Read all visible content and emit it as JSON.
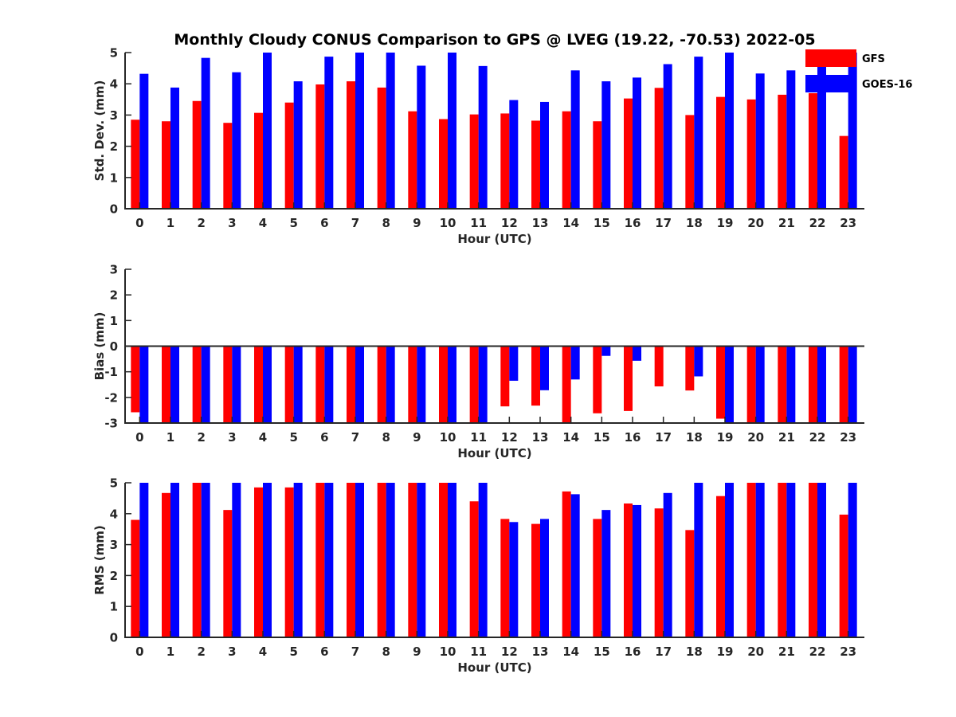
{
  "chart_data": {
    "title": "Monthly Cloudy CONUS Comparison to GPS @ LVEG (19.22, -70.53) 2022-05",
    "legend": {
      "placement": "top-right",
      "entries": [
        {
          "name": "GFS",
          "color": "#ff0000"
        },
        {
          "name": "GOES-16",
          "color": "#0000ff"
        }
      ]
    },
    "panels": [
      {
        "type": "bar",
        "xlabel": "Hour (UTC)",
        "ylabel": "Std. Dev. (mm)",
        "ylim": [
          0,
          5
        ],
        "yticks": [
          "0",
          "1",
          "2",
          "3",
          "4",
          "5"
        ],
        "categories": [
          "0",
          "1",
          "2",
          "3",
          "4",
          "5",
          "6",
          "7",
          "8",
          "9",
          "10",
          "11",
          "12",
          "13",
          "14",
          "15",
          "16",
          "17",
          "18",
          "19",
          "20",
          "21",
          "22",
          "23"
        ],
        "series": [
          {
            "name": "GFS",
            "color": "#ff0000",
            "values": [
              2.85,
              2.8,
              3.45,
              2.75,
              3.07,
              3.4,
              3.98,
              4.08,
              3.88,
              3.12,
              2.87,
              3.02,
              3.05,
              2.82,
              3.12,
              2.8,
              3.53,
              3.87,
              3.0,
              3.58,
              3.5,
              3.65,
              3.7,
              2.33
            ]
          },
          {
            "name": "GOES-16",
            "color": "#0000ff",
            "values": [
              4.32,
              3.88,
              4.83,
              4.37,
              5,
              4.08,
              4.87,
              5,
              5,
              4.58,
              5,
              4.57,
              3.48,
              3.42,
              4.43,
              4.08,
              4.2,
              4.63,
              4.87,
              5,
              4.33,
              4.43,
              4.92,
              5
            ]
          }
        ]
      },
      {
        "type": "bar",
        "xlabel": "Hour (UTC)",
        "ylabel": "Bias (mm)",
        "ylim": [
          -3,
          3
        ],
        "yticks": [
          "-3",
          "-2",
          "-1",
          "0",
          "1",
          "2",
          "3"
        ],
        "categories": [
          "0",
          "1",
          "2",
          "3",
          "4",
          "5",
          "6",
          "7",
          "8",
          "9",
          "10",
          "11",
          "12",
          "13",
          "14",
          "15",
          "16",
          "17",
          "18",
          "19",
          "20",
          "21",
          "22",
          "23"
        ],
        "series": [
          {
            "name": "GFS",
            "color": "#ff0000",
            "values": [
              -2.58,
              -3,
              -3,
              -3,
              -3,
              -3,
              -3,
              -3,
              -3,
              -3,
              -3,
              -3,
              -2.35,
              -2.32,
              -3,
              -2.62,
              -2.53,
              -1.57,
              -1.73,
              -2.83,
              -3,
              -3,
              -3,
              -3
            ]
          },
          {
            "name": "GOES-16",
            "color": "#0000ff",
            "values": [
              -3,
              -3,
              -3,
              -3,
              -3,
              -3,
              -3,
              -3,
              -3,
              -3,
              -3,
              -3,
              -1.35,
              -1.72,
              -1.3,
              -0.38,
              -0.57,
              0,
              -1.18,
              -3,
              -3,
              -3,
              -3,
              -3
            ]
          }
        ]
      },
      {
        "type": "bar",
        "xlabel": "Hour (UTC)",
        "ylabel": "RMS (mm)",
        "ylim": [
          0,
          5
        ],
        "yticks": [
          "0",
          "1",
          "2",
          "3",
          "4",
          "5"
        ],
        "categories": [
          "0",
          "1",
          "2",
          "3",
          "4",
          "5",
          "6",
          "7",
          "8",
          "9",
          "10",
          "11",
          "12",
          "13",
          "14",
          "15",
          "16",
          "17",
          "18",
          "19",
          "20",
          "21",
          "22",
          "23"
        ],
        "series": [
          {
            "name": "GFS",
            "color": "#ff0000",
            "values": [
              3.8,
              4.67,
              5,
              4.12,
              4.85,
              4.85,
              5,
              5,
              5,
              5,
              5,
              4.4,
              3.83,
              3.67,
              4.72,
              3.83,
              4.33,
              4.17,
              3.47,
              4.57,
              5,
              5,
              5,
              3.97
            ]
          },
          {
            "name": "GOES-16",
            "color": "#0000ff",
            "values": [
              5,
              5,
              5,
              5,
              5,
              5,
              5,
              5,
              5,
              5,
              5,
              5,
              3.73,
              3.83,
              4.63,
              4.12,
              4.28,
              4.67,
              5,
              5,
              5,
              5,
              5,
              5
            ]
          }
        ]
      }
    ]
  }
}
